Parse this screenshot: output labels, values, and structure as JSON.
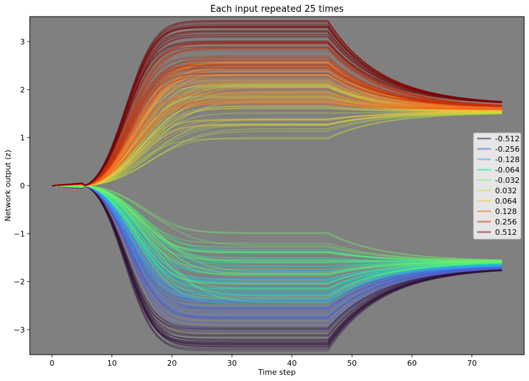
{
  "chart_data": {
    "type": "line",
    "title": "Each input repeated 25 times",
    "xlabel": "Time step",
    "ylabel": "Network output (z)",
    "xlim": [
      -3.7,
      78.7
    ],
    "ylim": [
      -3.52,
      3.52
    ],
    "xticks": [
      0,
      10,
      20,
      30,
      40,
      50,
      60,
      70
    ],
    "yticks": [
      -3,
      -2,
      -1,
      0,
      1,
      2,
      3
    ],
    "ytick_labels": [
      "−3",
      "−2",
      "−1",
      "0",
      "1",
      "2",
      "3"
    ],
    "background": "#808080",
    "grid": false,
    "legend_position": "right",
    "repeats": 25,
    "series": [
      {
        "name": "-0.512",
        "color": "#30123b",
        "plateau": -3.17,
        "end": -1.7,
        "rise_rate": 0.175,
        "spread": 0.03
      },
      {
        "name": "-0.256",
        "color": "#4c5fd6",
        "plateau": -2.62,
        "end": -1.68,
        "rise_rate": 0.15,
        "spread": 0.05
      },
      {
        "name": "-0.128",
        "color": "#2fa4f4",
        "plateau": -2.2,
        "end": -1.64,
        "rise_rate": 0.13,
        "spread": 0.08
      },
      {
        "name": "-0.064",
        "color": "#1ee0b0",
        "plateau": -1.88,
        "end": -1.6,
        "rise_rate": 0.11,
        "spread": 0.12
      },
      {
        "name": "-0.032",
        "color": "#6ff46a",
        "plateau": -1.7,
        "end": -1.57,
        "rise_rate": 0.09,
        "spread": 0.15
      },
      {
        "name": "0.032",
        "color": "#c4e43a",
        "plateau": 1.65,
        "end": 1.52,
        "rise_rate": 0.09,
        "spread": 0.15
      },
      {
        "name": "0.064",
        "color": "#f3c23a",
        "plateau": 1.9,
        "end": 1.55,
        "rise_rate": 0.11,
        "spread": 0.12
      },
      {
        "name": "0.128",
        "color": "#f6661f",
        "plateau": 2.22,
        "end": 1.58,
        "rise_rate": 0.13,
        "spread": 0.08
      },
      {
        "name": "0.256",
        "color": "#c82d05",
        "plateau": 2.62,
        "end": 1.62,
        "rise_rate": 0.15,
        "spread": 0.05
      },
      {
        "name": "0.512",
        "color": "#7a0403",
        "plateau": 3.17,
        "end": 1.68,
        "rise_rate": 0.175,
        "spread": 0.03
      }
    ]
  }
}
